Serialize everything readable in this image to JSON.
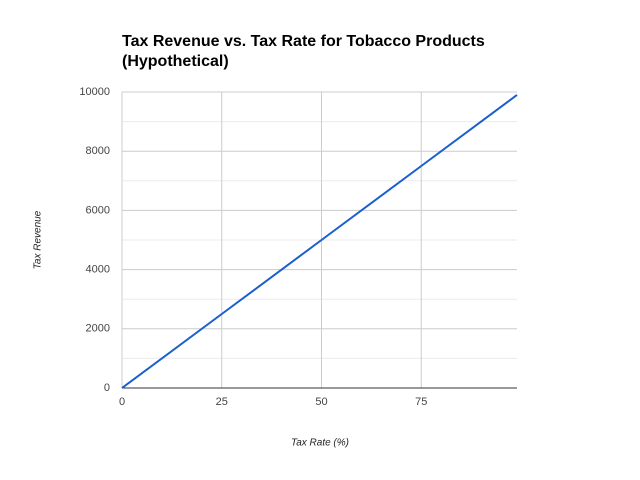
{
  "chart_data": {
    "type": "line",
    "title": "Tax Revenue vs. Tax Rate for Tobacco Products (Hypothetical)",
    "x_label": "Tax Rate (%)",
    "y_label": "Tax Revenue",
    "x": [
      0,
      25,
      50,
      75,
      99
    ],
    "series": [
      {
        "name": "Tax Revenue",
        "color": "#1a5fce",
        "values": [
          0,
          2500,
          5000,
          7500,
          9900
        ]
      }
    ],
    "xlim": [
      0,
      99
    ],
    "xticks": [
      0,
      25,
      50,
      75
    ],
    "ylim": [
      0,
      10000
    ],
    "yticks": [
      0,
      2000,
      4000,
      6000,
      8000,
      10000
    ],
    "grid": true
  }
}
